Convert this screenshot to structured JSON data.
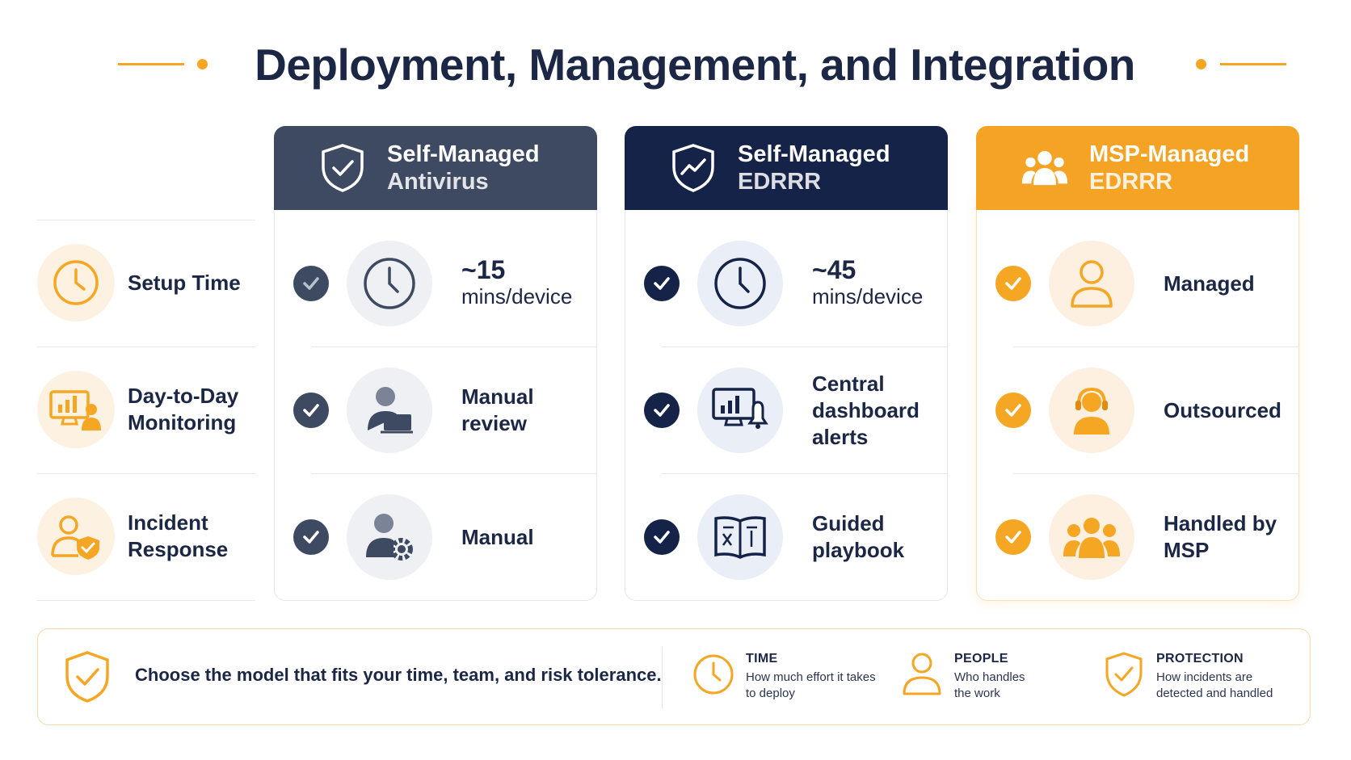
{
  "title": "Deployment, Management, and Integration",
  "rows": [
    {
      "label": "Setup Time",
      "icon": "clock-icon"
    },
    {
      "label": "Day-to-Day Monitoring",
      "icon": "monitor-chart-person-icon"
    },
    {
      "label": "Incident Response",
      "icon": "person-shield-icon"
    }
  ],
  "columns": [
    {
      "title": "Self-Managed",
      "subtitle": "Antivirus",
      "color": "#3d4a61",
      "icon": "shield-check-icon",
      "cells": [
        {
          "lead": "~15",
          "text": "mins/device",
          "icon": "clock-icon"
        },
        {
          "text": "Manual review",
          "icon": "person-laptop-icon"
        },
        {
          "text": "Manual",
          "icon": "person-gear-icon"
        }
      ]
    },
    {
      "title": "Self-Managed",
      "subtitle": "EDRRR",
      "color": "#142347",
      "icon": "shield-chart-icon",
      "cells": [
        {
          "lead": "~45",
          "text": "mins/device",
          "icon": "clock-icon"
        },
        {
          "text": "Central dashboard alerts",
          "icon": "monitor-bell-icon"
        },
        {
          "text": "Guided playbook",
          "icon": "open-book-icon"
        }
      ]
    },
    {
      "title": "MSP-Managed",
      "subtitle": "EDRRR",
      "color": "#f4a324",
      "icon": "group-icon",
      "cells": [
        {
          "text": "Managed",
          "icon": "person-icon"
        },
        {
          "text": "Outsourced",
          "icon": "headset-person-icon"
        },
        {
          "text": "Handled by MSP",
          "icon": "team-icon"
        }
      ]
    }
  ],
  "footer": {
    "message": "Choose the model that fits your time, team, and risk tolerance.",
    "legend": [
      {
        "title": "TIME",
        "desc": "How much effort it takes to deploy",
        "icon": "clock-icon"
      },
      {
        "title": "PEOPLE",
        "desc": "Who handles the work",
        "icon": "person-icon"
      },
      {
        "title": "PROTECTION",
        "desc": "How incidents are detected and handled",
        "icon": "shield-check-icon"
      }
    ]
  },
  "colors": {
    "accent": "#f5a623",
    "navy": "#142347",
    "slate": "#3d4a61",
    "text": "#1b2744"
  }
}
